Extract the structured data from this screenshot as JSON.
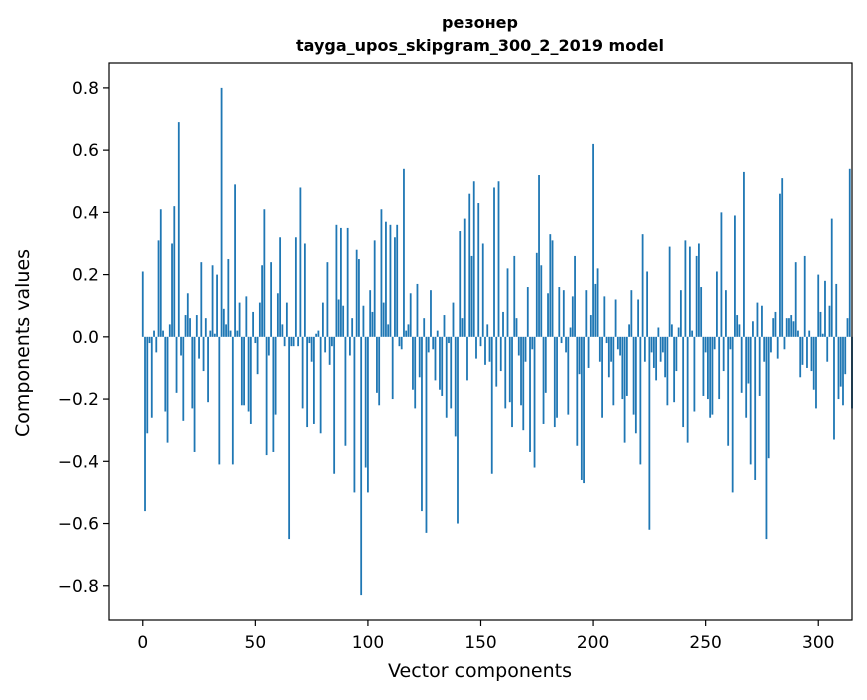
{
  "chart_data": {
    "type": "bar",
    "title": "резонер",
    "subtitle": "tayga_upos_skipgram_300_2_2019 model",
    "xlabel": "Vector components",
    "ylabel": "Components values",
    "xlim": [
      -15,
      315
    ],
    "ylim": [
      -0.91,
      0.88
    ],
    "x_ticks": [
      0,
      50,
      100,
      150,
      200,
      250,
      300
    ],
    "y_ticks": [
      -0.8,
      -0.6,
      -0.4,
      -0.2,
      0.0,
      0.2,
      0.4,
      0.6,
      0.8
    ],
    "y_tick_labels": [
      "−0.8",
      "−0.6",
      "−0.4",
      "−0.2",
      "0.0",
      "0.2",
      "0.4",
      "0.6",
      "0.8"
    ],
    "bar_color": "#1f77b4",
    "grid": false,
    "values": [
      0.21,
      -0.56,
      -0.31,
      -0.02,
      -0.26,
      0.02,
      -0.05,
      0.31,
      0.41,
      0.02,
      -0.24,
      -0.34,
      0.04,
      0.3,
      0.42,
      -0.18,
      0.69,
      -0.06,
      -0.27,
      0.07,
      0.14,
      0.06,
      -0.23,
      -0.37,
      0.07,
      -0.07,
      0.24,
      -0.11,
      0.06,
      -0.21,
      0.02,
      0.23,
      0.01,
      0.2,
      -0.41,
      0.8,
      0.09,
      0.04,
      0.25,
      0.02,
      -0.41,
      0.49,
      0.02,
      0.11,
      -0.22,
      -0.22,
      0.13,
      -0.24,
      -0.28,
      0.08,
      -0.02,
      -0.12,
      0.11,
      0.23,
      0.41,
      -0.38,
      -0.06,
      0.24,
      -0.37,
      -0.25,
      0.14,
      0.32,
      0.04,
      -0.03,
      0.11,
      -0.65,
      -0.03,
      -0.03,
      0.32,
      -0.03,
      0.48,
      -0.23,
      0.3,
      -0.29,
      -0.02,
      -0.08,
      -0.28,
      0.01,
      0.02,
      -0.31,
      0.11,
      -0.05,
      0.24,
      -0.09,
      -0.03,
      -0.44,
      0.36,
      0.12,
      0.35,
      0.1,
      -0.35,
      0.35,
      -0.06,
      0.06,
      -0.5,
      0.28,
      0.25,
      -0.83,
      0.1,
      -0.42,
      -0.5,
      0.15,
      0.08,
      0.31,
      -0.18,
      -0.22,
      0.41,
      0.11,
      0.37,
      0.04,
      0.36,
      -0.2,
      0.32,
      0.36,
      -0.03,
      -0.04,
      0.54,
      0.02,
      0.04,
      0.14,
      -0.17,
      -0.23,
      0.17,
      -0.13,
      -0.56,
      0.06,
      -0.63,
      -0.05,
      0.15,
      -0.04,
      -0.14,
      0.02,
      -0.17,
      -0.19,
      0.07,
      -0.26,
      -0.02,
      -0.23,
      0.11,
      -0.32,
      -0.6,
      0.34,
      0.06,
      0.38,
      -0.14,
      0.46,
      0.26,
      0.5,
      -0.07,
      0.43,
      -0.03,
      0.3,
      -0.09,
      0.04,
      -0.08,
      -0.44,
      0.48,
      -0.16,
      0.5,
      -0.11,
      0.08,
      -0.23,
      0.22,
      -0.21,
      -0.29,
      0.26,
      0.06,
      -0.06,
      -0.22,
      -0.3,
      -0.08,
      0.16,
      -0.37,
      -0.04,
      -0.42,
      0.27,
      0.52,
      0.23,
      -0.28,
      -0.18,
      0.14,
      0.33,
      0.31,
      -0.29,
      -0.26,
      0.16,
      -0.02,
      0.15,
      -0.05,
      -0.25,
      0.03,
      0.13,
      0.26,
      -0.35,
      -0.12,
      -0.46,
      -0.47,
      0.15,
      -0.1,
      0.07,
      0.62,
      0.17,
      0.22,
      -0.08,
      -0.26,
      0.13,
      -0.02,
      -0.13,
      -0.08,
      -0.22,
      0.12,
      -0.04,
      -0.06,
      -0.2,
      -0.34,
      -0.19,
      0.04,
      0.15,
      -0.25,
      -0.31,
      0.12,
      -0.41,
      0.33,
      -0.08,
      0.21,
      -0.62,
      -0.05,
      -0.1,
      -0.14,
      0.03,
      -0.08,
      -0.05,
      -0.13,
      -0.22,
      0.29,
      0.04,
      -0.21,
      -0.11,
      0.03,
      0.15,
      -0.29,
      0.31,
      -0.34,
      0.29,
      0.02,
      -0.24,
      0.26,
      0.3,
      0.16,
      -0.19,
      -0.05,
      -0.2,
      -0.26,
      -0.25,
      -0.04,
      0.21,
      -0.2,
      0.4,
      -0.11,
      0.15,
      -0.35,
      -0.04,
      -0.5,
      0.39,
      0.07,
      0.04,
      -0.18,
      0.53,
      -0.26,
      -0.15,
      -0.41,
      0.05,
      -0.46,
      0.11,
      -0.19,
      0.1,
      -0.08,
      -0.65,
      -0.39,
      -0.05,
      0.06,
      0.08,
      -0.07,
      0.46,
      0.51,
      -0.04,
      0.06,
      0.06,
      0.07,
      0.05,
      0.24,
      0.02,
      -0.13,
      -0.09,
      0.26,
      -0.1,
      0.02,
      -0.11,
      -0.17,
      -0.23,
      0.2,
      0.08,
      0.01,
      0.18,
      -0.08,
      0.1,
      0.38,
      -0.33,
      0.17,
      -0.2,
      -0.16,
      -0.22,
      -0.12,
      0.06,
      0.54,
      -0.23
    ]
  }
}
